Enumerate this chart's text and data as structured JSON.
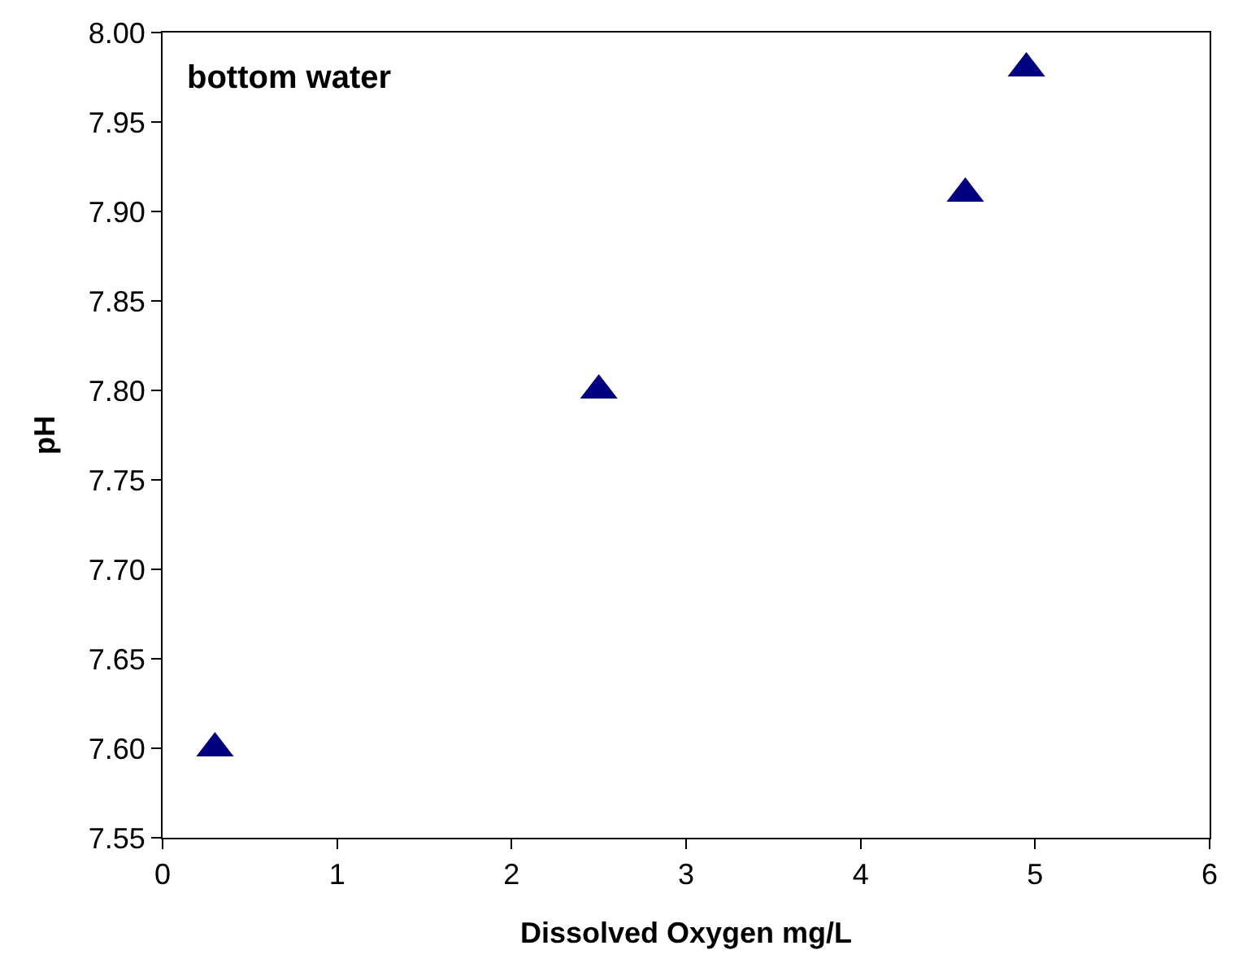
{
  "chart_data": {
    "type": "scatter",
    "xlabel": "Dissolved Oxygen mg/L",
    "ylabel": "pH",
    "annotations": [
      "bottom water"
    ],
    "series": [
      {
        "color": "#000080",
        "x": [
          0.3,
          2.5,
          4.6,
          4.95
        ],
        "values": [
          7.6,
          7.8,
          7.91,
          7.98
        ]
      }
    ],
    "xlim": [
      0,
      6
    ],
    "xticks": [
      0,
      1,
      2,
      3,
      4,
      5,
      6
    ],
    "ylim": [
      7.55,
      8.0
    ],
    "yticks": [
      {
        "value": 7.55,
        "label": "7.55"
      },
      {
        "value": 7.6,
        "label": "7.60"
      },
      {
        "value": 7.65,
        "label": "7.65"
      },
      {
        "value": 7.7,
        "label": "7.70"
      },
      {
        "value": 7.75,
        "label": "7.75"
      },
      {
        "value": 7.8,
        "label": "7.80"
      },
      {
        "value": 7.85,
        "label": "7.85"
      },
      {
        "value": 7.9,
        "label": "7.90"
      },
      {
        "value": 7.95,
        "label": "7.95"
      },
      {
        "value": 8.0,
        "label": "8.00"
      }
    ],
    "legend": false,
    "marker": "triangle"
  }
}
